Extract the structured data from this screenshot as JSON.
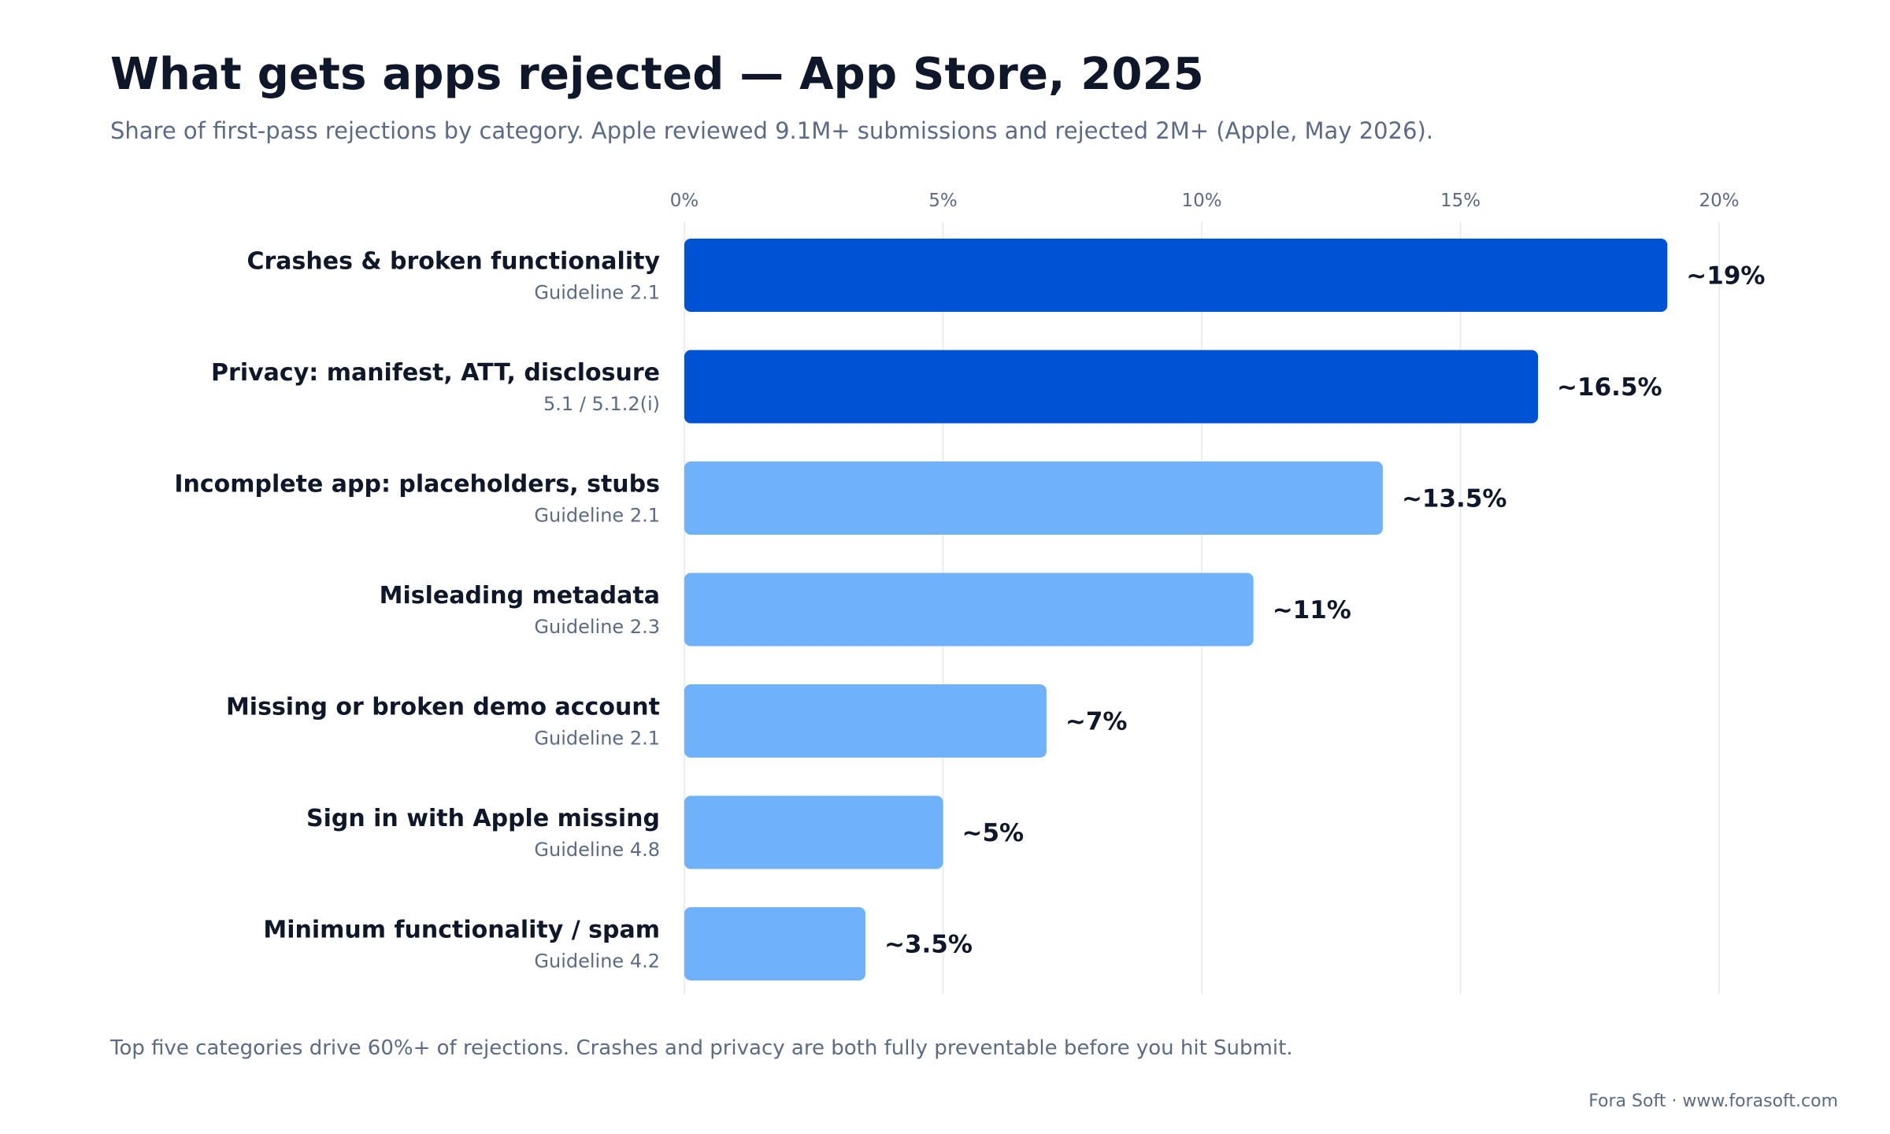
{
  "header": {
    "title": "What gets apps rejected — App Store, 2025",
    "subtitle": "Share of first-pass rejections by category. Apple reviewed 9.1M+ submissions and rejected 2M+ (Apple, May 2026)."
  },
  "footer": {
    "note": "Top five categories drive 60%+ of rejections. Crashes and privacy are both fully preventable before you hit Submit.",
    "credit": "Fora Soft · www.forasoft.com"
  },
  "colors": {
    "highlight": "#0052d4",
    "standard": "#70b1fc",
    "grid": "#e2e8f0",
    "text": "#0f172a",
    "muted": "#5b6b85"
  },
  "chart_data": {
    "type": "bar",
    "orientation": "horizontal",
    "title": "What gets apps rejected — App Store, 2025",
    "subtitle": "Share of first-pass rejections by category. Apple reviewed 9.1M+ submissions and rejected 2M+ (Apple, May 2026).",
    "xlim": [
      0,
      20
    ],
    "x_ticks": [
      0,
      5,
      10,
      15,
      20
    ],
    "x_tick_labels": [
      "0%",
      "5%",
      "10%",
      "15%",
      "20%"
    ],
    "tick_position": "top",
    "grid": true,
    "categories": [
      "Crashes & broken functionality",
      "Privacy: manifest, ATT, disclosure",
      "Incomplete app: placeholders, stubs",
      "Misleading metadata",
      "Missing or broken demo account",
      "Sign in with Apple missing",
      "Minimum functionality / spam"
    ],
    "sublabels": [
      "Guideline 2.1",
      "5.1 / 5.1.2(i)",
      "Guideline 2.1",
      "Guideline 2.3",
      "Guideline 2.1",
      "Guideline 4.8",
      "Guideline 4.2"
    ],
    "values": [
      19,
      16.5,
      13.5,
      11,
      7,
      5,
      3.5
    ],
    "value_labels": [
      "~19%",
      "~16.5%",
      "~13.5%",
      "~11%",
      "~7%",
      "~5%",
      "~3.5%"
    ],
    "highlighted": [
      true,
      true,
      false,
      false,
      false,
      false,
      false
    ]
  }
}
